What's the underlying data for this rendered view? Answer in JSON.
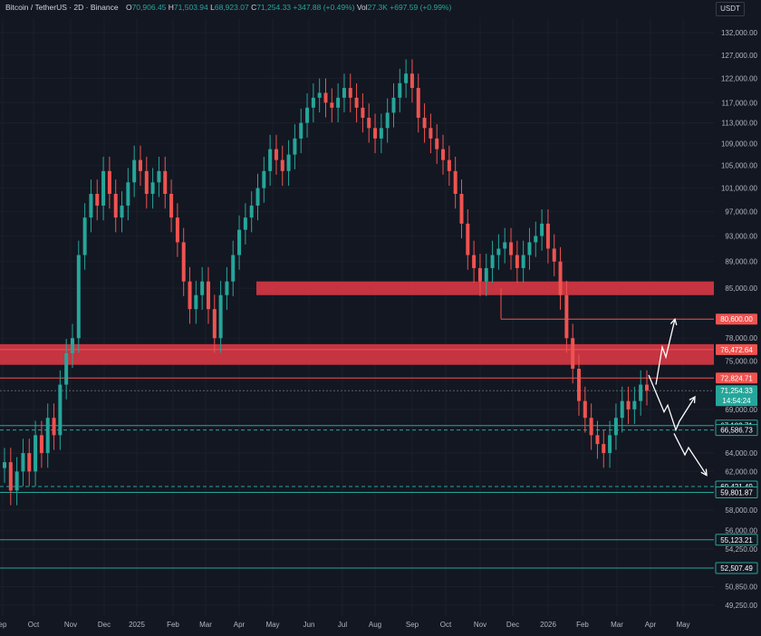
{
  "header": {
    "symbol": "Bitcoin / TetherUS · 2D · Binance",
    "open_label": "O",
    "open": "70,906.45",
    "high_label": "H",
    "high": "71,503.94",
    "low_label": "L",
    "low": "68,923.07",
    "close_label": "C",
    "close": "71,254.33",
    "change": "+347.88 (+0.49%)",
    "vol_label": "Vol",
    "vol": "27.3K",
    "vol_change": "+697.59 (+0.99%)"
  },
  "currency": "USDT",
  "colors": {
    "background": "#131722",
    "up": "#26a69a",
    "down": "#ef5350",
    "zone": "#e53945",
    "support": "#26a69a",
    "axis_text": "#b2b5be",
    "arrows": "#ffffff"
  },
  "y_axis_ticks": [
    "132,000.00",
    "127,000.00",
    "122,000.00",
    "117,000.00",
    "113,000.00",
    "109,000.00",
    "105,000.00",
    "101,000.00",
    "97,000.00",
    "93,000.00",
    "89,000.00",
    "85,000.00",
    "78,000.00",
    "75,000.00",
    "69,000.00",
    "64,000.00",
    "62,000.00",
    "58,000.00",
    "56,000.00",
    "54,250.00",
    "50,850.00",
    "49,250.00"
  ],
  "x_axis_labels": [
    "ep",
    "Oct",
    "Nov",
    "Dec",
    "2025",
    "Feb",
    "Mar",
    "Apr",
    "May",
    "Jun",
    "Jul",
    "Aug",
    "Sep",
    "Oct",
    "Nov",
    "Dec",
    "2026",
    "Feb",
    "Mar",
    "Apr",
    "May"
  ],
  "price_labels": [
    {
      "text": "80,600.00",
      "style": "red"
    },
    {
      "text": "76,472.64",
      "style": "red"
    },
    {
      "text": "72,824.71",
      "style": "red"
    },
    {
      "text": "71,254.33",
      "style": "current"
    },
    {
      "text": "14:54:24",
      "style": "current"
    },
    {
      "text": "67,103.71",
      "style": "green"
    },
    {
      "text": "66,586.73",
      "style": "green"
    },
    {
      "text": "60,421.49",
      "style": "green"
    },
    {
      "text": "59,801.87",
      "style": "green"
    },
    {
      "text": "55,123.21",
      "style": "green"
    },
    {
      "text": "52,507.49",
      "style": "green"
    }
  ],
  "chart_data": {
    "type": "candlestick",
    "y_scale": "log",
    "ylim": [
      48500,
      135000
    ],
    "series": [
      {
        "name": "BTCUSDT 2D",
        "close_path": [
          63000,
          60000,
          62000,
          64000,
          62000,
          66000,
          64000,
          68000,
          66000,
          72000,
          76000,
          78000,
          90000,
          96000,
          100000,
          98000,
          104000,
          100000,
          96000,
          98000,
          102000,
          106000,
          104000,
          100000,
          102000,
          104000,
          100000,
          96000,
          92000,
          86000,
          82000,
          84000,
          86000,
          82000,
          78000,
          84000,
          86000,
          90000,
          94000,
          96000,
          98000,
          101000,
          104000,
          108000,
          106000,
          104000,
          107000,
          110000,
          113000,
          116000,
          118000,
          119000,
          117000,
          116000,
          118000,
          120000,
          118000,
          116000,
          114000,
          112000,
          110000,
          112000,
          115000,
          118000,
          121000,
          123000,
          120000,
          114000,
          112000,
          110000,
          108000,
          106000,
          104000,
          100000,
          95000,
          90000,
          88000,
          86000,
          88000,
          90000,
          91000,
          92000,
          90000,
          88000,
          90000,
          92000,
          93000,
          95000,
          91000,
          89000,
          84000,
          78000,
          74000,
          70000,
          68000,
          66000,
          65000,
          64000,
          66000,
          68000,
          70000,
          69000,
          70000,
          72000,
          71254
        ]
      }
    ],
    "zones": [
      {
        "low": 84000,
        "high": 86000
      },
      {
        "low": 74500,
        "high": 77200
      }
    ],
    "levels": [
      {
        "price": 80600,
        "color": "red"
      },
      {
        "price": 76472.64,
        "color": "red"
      },
      {
        "price": 72824.71,
        "color": "red"
      },
      {
        "price": 71254.33,
        "color": "gray"
      },
      {
        "price": 67103.71,
        "color": "green"
      },
      {
        "price": 66586.73,
        "color": "green"
      },
      {
        "price": 60421.49,
        "color": "green"
      },
      {
        "price": 59801.87,
        "color": "green"
      },
      {
        "price": 55123.21,
        "color": "green"
      },
      {
        "price": 52507.49,
        "color": "green"
      }
    ],
    "projection_arrows": "three scenarios: bounce to 80,600; drop to 67,100 then rebound; drop toward 62,000"
  }
}
